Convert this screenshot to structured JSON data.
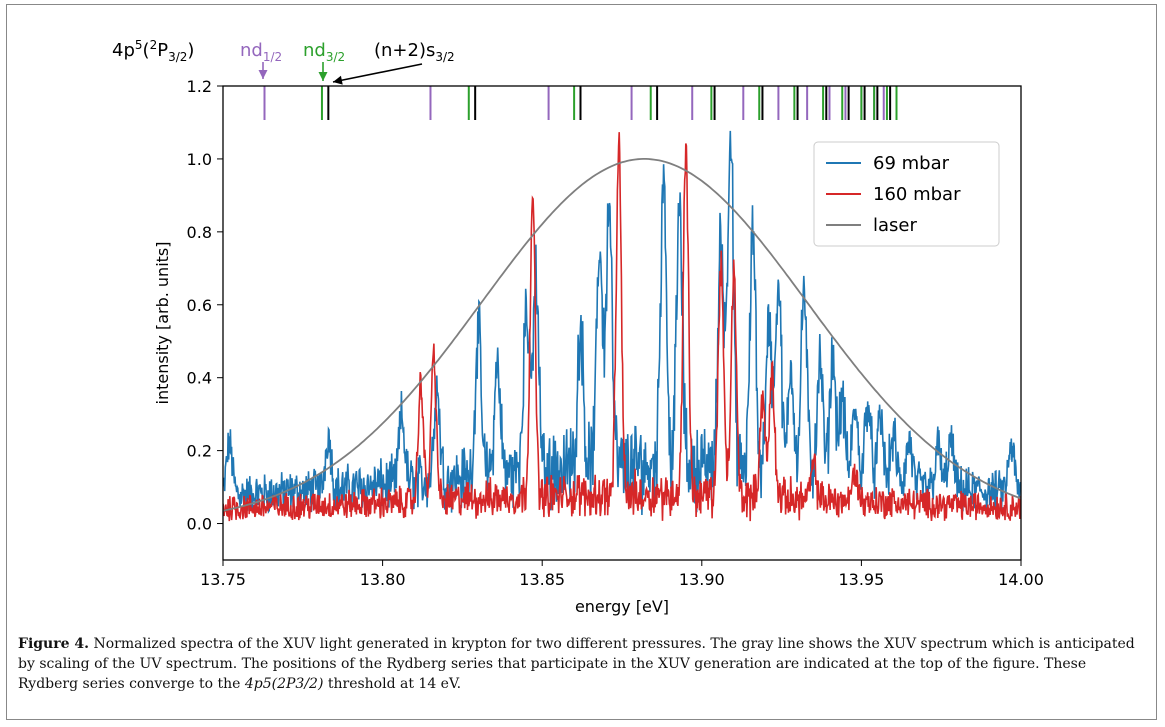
{
  "chart_data": {
    "type": "line",
    "xlabel": "energy [eV]",
    "ylabel": "intensity [arb. units]",
    "xlim": [
      13.75,
      14.0
    ],
    "ylim": [
      -0.1,
      1.2
    ],
    "x_ticks": [
      "13.75",
      "13.80",
      "13.85",
      "13.90",
      "13.95",
      "14.00"
    ],
    "y_ticks": [
      "0.0",
      "0.2",
      "0.4",
      "0.6",
      "0.8",
      "1.0",
      "1.2"
    ],
    "legend_position": "top-right",
    "series": [
      {
        "name": "69 mbar",
        "color": "#1f77b4",
        "baseline": 0.07,
        "noise": 0.05,
        "peaks": [
          {
            "x": 13.752,
            "y": 0.21
          },
          {
            "x": 13.783,
            "y": 0.22
          },
          {
            "x": 13.806,
            "y": 0.25
          },
          {
            "x": 13.817,
            "y": 0.32
          },
          {
            "x": 13.83,
            "y": 0.47
          },
          {
            "x": 13.836,
            "y": 0.37
          },
          {
            "x": 13.845,
            "y": 0.52
          },
          {
            "x": 13.848,
            "y": 0.6
          },
          {
            "x": 13.862,
            "y": 0.46
          },
          {
            "x": 13.868,
            "y": 0.68
          },
          {
            "x": 13.871,
            "y": 0.81
          },
          {
            "x": 13.888,
            "y": 0.88
          },
          {
            "x": 13.893,
            "y": 0.78
          },
          {
            "x": 13.906,
            "y": 0.7
          },
          {
            "x": 13.909,
            "y": 1.0
          },
          {
            "x": 13.916,
            "y": 0.71
          },
          {
            "x": 13.921,
            "y": 0.47
          },
          {
            "x": 13.924,
            "y": 0.59
          },
          {
            "x": 13.928,
            "y": 0.37
          },
          {
            "x": 13.932,
            "y": 0.58
          },
          {
            "x": 13.937,
            "y": 0.38
          },
          {
            "x": 13.941,
            "y": 0.4
          },
          {
            "x": 13.944,
            "y": 0.28
          },
          {
            "x": 13.948,
            "y": 0.26
          },
          {
            "x": 13.952,
            "y": 0.3
          },
          {
            "x": 13.956,
            "y": 0.24
          },
          {
            "x": 13.96,
            "y": 0.2
          },
          {
            "x": 13.965,
            "y": 0.19
          },
          {
            "x": 13.974,
            "y": 0.18
          },
          {
            "x": 13.978,
            "y": 0.2
          },
          {
            "x": 13.997,
            "y": 0.2
          }
        ]
      },
      {
        "name": "160 mbar",
        "color": "#d62728",
        "baseline": 0.04,
        "noise": 0.035,
        "peaks": [
          {
            "x": 13.812,
            "y": 0.37
          },
          {
            "x": 13.816,
            "y": 0.44
          },
          {
            "x": 13.847,
            "y": 0.86
          },
          {
            "x": 13.874,
            "y": 0.99
          },
          {
            "x": 13.895,
            "y": 1.0
          },
          {
            "x": 13.906,
            "y": 0.68
          },
          {
            "x": 13.91,
            "y": 0.65
          },
          {
            "x": 13.919,
            "y": 0.31
          },
          {
            "x": 13.922,
            "y": 0.38
          },
          {
            "x": 13.935,
            "y": 0.13
          },
          {
            "x": 13.948,
            "y": 0.12
          }
        ]
      },
      {
        "name": "laser",
        "color": "#7f7f7f",
        "gaussian": {
          "center": 13.882,
          "amplitude": 1.0,
          "sigma": 0.051
        }
      }
    ],
    "rydberg_series": {
      "labels": {
        "threshold": "4p5(2P3/2)",
        "nd12": "nd1/2",
        "nd32": "nd3/2",
        "ns": "(n+2)s3/2"
      },
      "nd12": {
        "color": "#9467bd",
        "x": [
          13.763,
          13.815,
          13.852,
          13.878,
          13.897,
          13.913,
          13.924,
          13.933,
          13.94,
          13.945,
          13.95,
          13.954,
          13.957
        ]
      },
      "nd32": {
        "color": "#2ca02c",
        "x": [
          13.781,
          13.827,
          13.86,
          13.884,
          13.903,
          13.918,
          13.929,
          13.938,
          13.944,
          13.95,
          13.954,
          13.958,
          13.961
        ]
      },
      "ns": {
        "color": "#000000",
        "x": [
          13.783,
          13.829,
          13.862,
          13.886,
          13.904,
          13.919,
          13.93,
          13.939,
          13.946,
          13.951,
          13.955,
          13.959
        ]
      }
    }
  },
  "caption": {
    "label": "Figure 4.",
    "text_1": "Normalized spectra of the XUV light generated in krypton for two different pressures. The gray line shows the XUV spectrum which is anticipated by scaling of the UV spectrum. The positions of the Rydberg series that participate in the XUV generation are indicated at the top of the figure. These Rydberg series converge to the ",
    "formula": "4p5(2P3/2)",
    "text_2": " threshold at 14 eV."
  }
}
